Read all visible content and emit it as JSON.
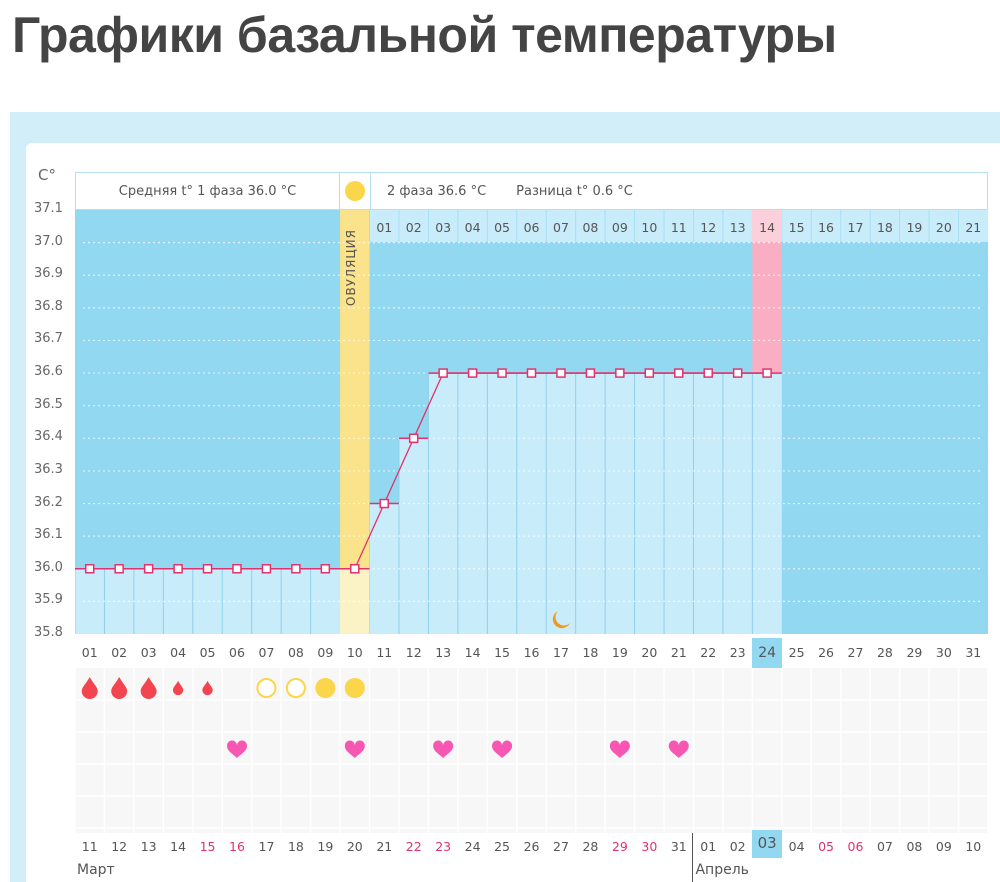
{
  "page": {
    "title": "Графики базальной температуры"
  },
  "chart_data": {
    "type": "line",
    "title": "Графики базальной температуры",
    "ylabel": "C°",
    "ylim": [
      35.8,
      37.1
    ],
    "y_ticks": [
      "37.1",
      "37.0",
      "36.9",
      "36.8",
      "36.7",
      "36.6",
      "36.5",
      "36.4",
      "36.3",
      "36.2",
      "36.1",
      "36.0",
      "35.9",
      "35.8"
    ],
    "cycle_days": [
      "01",
      "02",
      "03",
      "04",
      "05",
      "06",
      "07",
      "08",
      "09",
      "10",
      "11",
      "12",
      "13",
      "14",
      "15",
      "16",
      "17",
      "18",
      "19",
      "20",
      "21",
      "22",
      "23",
      "24",
      "25",
      "26",
      "27",
      "28",
      "29",
      "30",
      "31"
    ],
    "phase2_days": [
      "01",
      "02",
      "03",
      "04",
      "05",
      "06",
      "07",
      "08",
      "09",
      "10",
      "11",
      "12",
      "13",
      "14",
      "15",
      "16",
      "17",
      "18",
      "19",
      "20",
      "21"
    ],
    "series": [
      {
        "name": "Базальная температура",
        "color": "#e0336d",
        "x": [
          1,
          2,
          3,
          4,
          5,
          6,
          7,
          8,
          9,
          10,
          11,
          12,
          13,
          14,
          15,
          16,
          17,
          18,
          19,
          20,
          21,
          22,
          23,
          24
        ],
        "values": [
          36.0,
          36.0,
          36.0,
          36.0,
          36.0,
          36.0,
          36.0,
          36.0,
          36.0,
          36.0,
          36.2,
          36.4,
          36.6,
          36.6,
          36.6,
          36.6,
          36.6,
          36.6,
          36.6,
          36.6,
          36.6,
          36.6,
          36.6,
          36.6
        ]
      }
    ],
    "annotations": {
      "phase1_label": "Средняя t° 1 фаза 36.0 °C",
      "phase2_label": "2 фаза 36.6 °C",
      "difference_label": "Разница t° 0.6 °C",
      "ovulation_label": "ОВУЛЯЦИЯ",
      "ovulation_day": 10,
      "highlighted_phase2_day": "14",
      "highlighted_cycle_day": "24",
      "moon_icon_day": 17
    },
    "symptoms": {
      "bleeding": [
        {
          "day": 1,
          "size": "large"
        },
        {
          "day": 2,
          "size": "large"
        },
        {
          "day": 3,
          "size": "large"
        },
        {
          "day": 4,
          "size": "small"
        },
        {
          "day": 5,
          "size": "small"
        }
      ],
      "mucus": [
        {
          "day": 7,
          "type": "empty-circle"
        },
        {
          "day": 8,
          "type": "empty-circle"
        },
        {
          "day": 9,
          "type": "filled-circle"
        },
        {
          "day": 10,
          "type": "filled-circle"
        }
      ],
      "intercourse_days": [
        6,
        10,
        13,
        15,
        19,
        21
      ]
    },
    "calendar": {
      "dates": [
        "11",
        "12",
        "13",
        "14",
        "15",
        "16",
        "17",
        "18",
        "19",
        "20",
        "21",
        "22",
        "23",
        "24",
        "25",
        "26",
        "27",
        "28",
        "29",
        "30",
        "31",
        "01",
        "02",
        "03",
        "04",
        "05",
        "06",
        "07",
        "08",
        "09",
        "10"
      ],
      "weekend_indices": [
        4,
        5,
        11,
        12,
        18,
        19,
        25,
        26
      ],
      "today_index": 23,
      "months": [
        {
          "label": "Март",
          "start_index": 0
        },
        {
          "label": "Апрель",
          "start_index": 21
        }
      ]
    },
    "colors": {
      "background_blue": "#93d8f1",
      "light_blue": "#c9ecfa",
      "ovulation_yellow": "#fae38a",
      "highlight_pink": "#f9aec2",
      "line_red": "#e0336d",
      "heart_pink": "#f756b2",
      "drop_red": "#f3454f",
      "sun_yellow": "#fbd54a"
    }
  }
}
